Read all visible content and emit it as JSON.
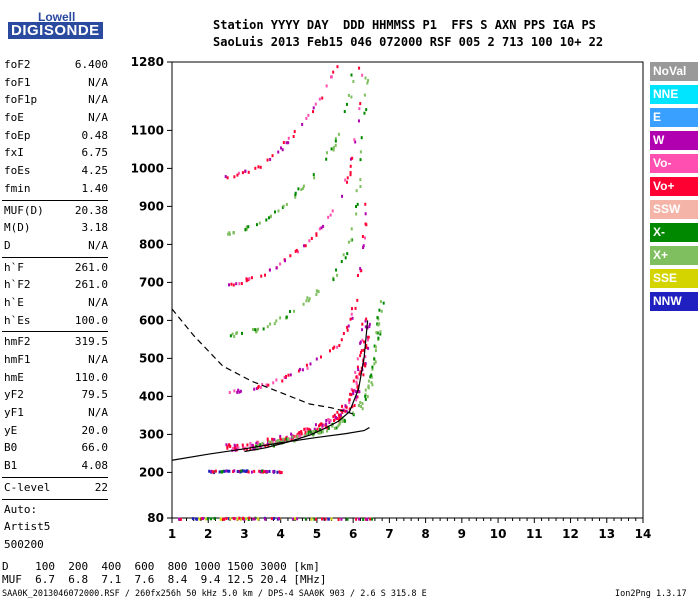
{
  "logo": {
    "line1": "Lowell",
    "line2": "DIGISONDE"
  },
  "header": {
    "line1": "Station YYYY DAY  DDD HHMMSS P1  FFS S AXN PPS IGA PS",
    "line2": "SaoLuis 2013 Feb15 046 072000 RSF 005 2 713 100 10+ 22"
  },
  "params": [
    [
      {
        "name": "foF2",
        "value": "6.400"
      },
      {
        "name": "foF1",
        "value": "N/A"
      },
      {
        "name": "foF1p",
        "value": "N/A"
      },
      {
        "name": "foE",
        "value": "N/A"
      },
      {
        "name": "foEp",
        "value": "0.48"
      },
      {
        "name": "fxI",
        "value": "6.75"
      },
      {
        "name": "foEs",
        "value": "4.25"
      },
      {
        "name": "fmin",
        "value": "1.40"
      }
    ],
    [
      {
        "name": "MUF(D)",
        "value": "20.38"
      },
      {
        "name": "M(D)",
        "value": "3.18"
      },
      {
        "name": "D",
        "value": "N/A"
      }
    ],
    [
      {
        "name": "h`F",
        "value": "261.0"
      },
      {
        "name": "h`F2",
        "value": "261.0"
      },
      {
        "name": "h`E",
        "value": "N/A"
      },
      {
        "name": "h`Es",
        "value": "100.0"
      }
    ],
    [
      {
        "name": "hmF2",
        "value": "319.5"
      },
      {
        "name": "hmF1",
        "value": "N/A"
      },
      {
        "name": "hmE",
        "value": "110.0"
      },
      {
        "name": "yF2",
        "value": "79.5"
      },
      {
        "name": "yF1",
        "value": "N/A"
      },
      {
        "name": "yE",
        "value": "20.0"
      },
      {
        "name": "B0",
        "value": "66.0"
      },
      {
        "name": "B1",
        "value": "4.08"
      }
    ],
    [
      {
        "name": "C-level",
        "value": "22"
      }
    ],
    [
      {
        "name": "Auto:",
        "value": ""
      },
      {
        "name": "Artist5",
        "value": ""
      },
      {
        "name": "500200",
        "value": ""
      }
    ]
  ],
  "legend": [
    {
      "label": "NoVal",
      "color": "#999999"
    },
    {
      "label": "NNE",
      "color": "#00e5ff"
    },
    {
      "label": "E",
      "color": "#3aa0ff"
    },
    {
      "label": "W",
      "color": "#b000b0"
    },
    {
      "label": "Vo-",
      "color": "#ff4fb0"
    },
    {
      "label": "Vo+",
      "color": "#ff0033"
    },
    {
      "label": "SSW",
      "color": "#f4b4a8"
    },
    {
      "label": "X-",
      "color": "#008800"
    },
    {
      "label": "X+",
      "color": "#7fbf5f"
    },
    {
      "label": "SSE",
      "color": "#d4d400"
    },
    {
      "label": "NNW",
      "color": "#2020c0"
    }
  ],
  "chart_data": {
    "type": "scatter",
    "xlim": [
      1,
      14
    ],
    "ylim": [
      80,
      1280
    ],
    "x_ticks": [
      1,
      2,
      3,
      4,
      5,
      6,
      7,
      8,
      9,
      10,
      11,
      12,
      13,
      14
    ],
    "y_ticks": [
      80,
      200,
      300,
      400,
      500,
      600,
      700,
      800,
      900,
      1000,
      1100,
      1280
    ],
    "traces": [
      {
        "name": "F-trace O",
        "x": [
          2.5,
          3.0,
          3.5,
          4.0,
          4.5,
          5.0,
          5.5,
          5.9,
          6.1,
          6.25,
          6.35
        ],
        "y": [
          268,
          272,
          278,
          290,
          305,
          322,
          345,
          385,
          440,
          520,
          600
        ]
      },
      {
        "name": "F-trace X",
        "x": [
          3.2,
          3.8,
          4.4,
          5.0,
          5.6,
          6.2,
          6.5,
          6.65,
          6.75
        ],
        "y": [
          270,
          280,
          292,
          310,
          332,
          380,
          450,
          560,
          650
        ]
      },
      {
        "name": "E/Es trace",
        "x": [
          1.1,
          2.0,
          3.0,
          4.0,
          5.0,
          6.0,
          6.6
        ],
        "y": [
          80,
          81,
          82,
          81,
          80,
          80,
          80
        ]
      },
      {
        "name": "2nd hop",
        "x": [
          2.0,
          2.5,
          3.0,
          3.5,
          4.0
        ],
        "y": [
          205,
          206,
          207,
          206,
          205
        ]
      },
      {
        "name": "Model profile",
        "x": [
          3.0,
          3.6,
          4.2,
          4.8,
          5.2,
          5.6,
          5.9,
          6.15,
          6.3,
          6.4
        ],
        "y": [
          255,
          265,
          280,
          298,
          315,
          335,
          360,
          420,
          500,
          600
        ]
      },
      {
        "name": "Bottomside",
        "x": [
          1.0,
          2.0,
          3.0,
          4.0,
          5.0,
          5.8,
          6.3,
          6.45
        ],
        "y": [
          232,
          248,
          262,
          278,
          292,
          302,
          310,
          318
        ]
      },
      {
        "name": "Topside extrapolation",
        "x": [
          1.0,
          1.6,
          2.4,
          3.2,
          4.0,
          4.8,
          5.4,
          5.8,
          6.1
        ],
        "y": [
          630,
          560,
          480,
          440,
          410,
          380,
          370,
          360,
          350
        ]
      }
    ]
  },
  "footer": {
    "line1": "D    100  200  400  600  800 1000 1500 3000 [km]",
    "line2": "MUF  6.7  6.8  7.1  7.6  8.4  9.4 12.5 20.4 [MHz]",
    "line3": "SAA0K_2013046072000.RSF / 260fx256h 50 kHz 5.0 km / DPS-4 SAA0K 903 / 2.6 S 315.8 E",
    "version": "Ion2Png 1.3.17"
  }
}
